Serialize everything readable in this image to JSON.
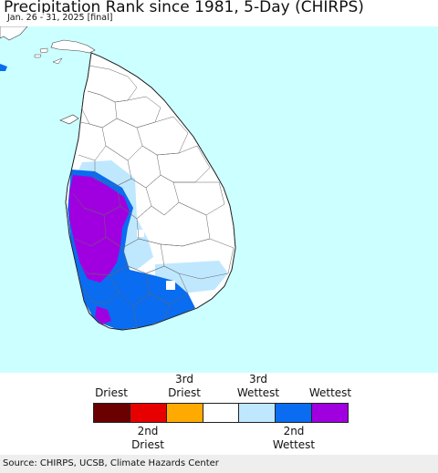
{
  "title": "Precipitation Rank since 1981, 5-Day (CHIRPS)",
  "subtitle": "Jan. 26 - 31, 2025 [final]",
  "colors": {
    "ocean": "#ccffff",
    "land": "#ffffff",
    "border": "#555555",
    "driest": "#6b0000",
    "second_driest": "#e60000",
    "third_driest": "#ffaa00",
    "normal": "#ffffff",
    "third_wettest": "#bfe8ff",
    "second_wettest": "#0a6cf0",
    "wettest": "#a000e0"
  },
  "legend": {
    "top_labels": [
      "Driest",
      "3rd\nDriest",
      "3rd\nWettest",
      "Wettest"
    ],
    "bottom_labels": [
      "2nd\nDriest",
      "2nd\nWettest"
    ],
    "swatch_colors": [
      "#6b0000",
      "#e60000",
      "#ffaa00",
      "#ffffff",
      "#bfe8ff",
      "#0a6cf0",
      "#a000e0"
    ]
  },
  "source": "Source: CHIRPS, UCSB, Climate Hazards Center"
}
